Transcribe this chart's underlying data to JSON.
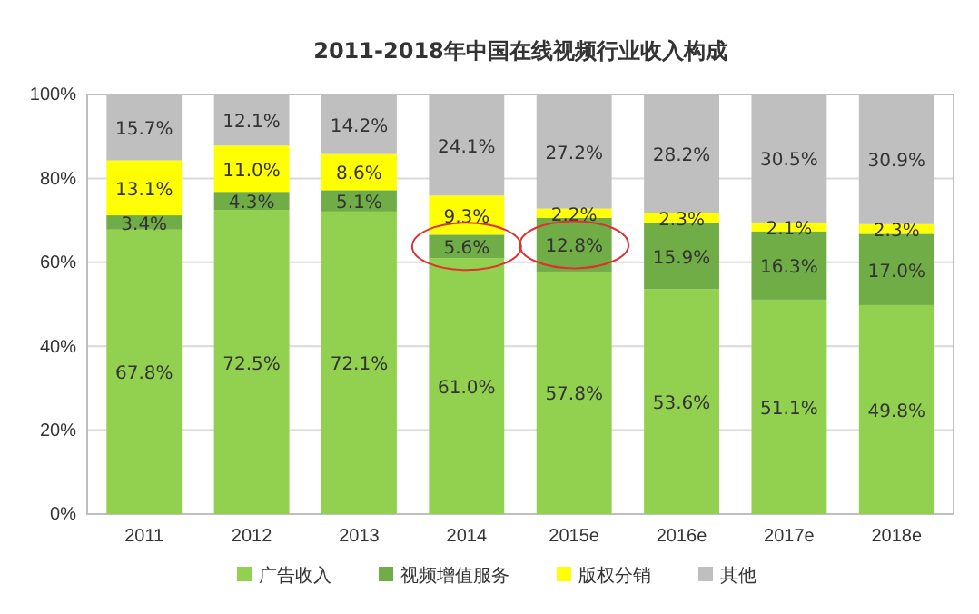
{
  "chart_data": {
    "type": "bar",
    "stacked": true,
    "title": "2011-2018年中国在线视频行业收入构成",
    "categories": [
      "2011",
      "2012",
      "2013",
      "2014",
      "2015e",
      "2016e",
      "2017e",
      "2018e"
    ],
    "series": [
      {
        "name": "广告收入",
        "color": "#92d050",
        "values": [
          67.8,
          72.5,
          72.1,
          61.0,
          57.8,
          53.6,
          51.1,
          49.8
        ],
        "value_labels": [
          "67.8%",
          "72.5%",
          "72.1%",
          "61.0%",
          "57.8%",
          "53.6%",
          "51.1%",
          "49.8%"
        ]
      },
      {
        "name": "视频增值服务",
        "color": "#70ad47",
        "values": [
          3.4,
          4.3,
          5.1,
          5.6,
          12.8,
          15.9,
          16.3,
          17.0
        ],
        "value_labels": [
          "3.4%",
          "4.3%",
          "5.1%",
          "5.6%",
          "12.8%",
          "15.9%",
          "16.3%",
          "17.0%"
        ]
      },
      {
        "name": "版权分销",
        "color": "#ffff00",
        "values": [
          13.1,
          11.0,
          8.6,
          9.3,
          2.2,
          2.3,
          2.1,
          2.3
        ],
        "value_labels": [
          "13.1%",
          "11.0%",
          "8.6%",
          "9.3%",
          "2.2%",
          "2.3%",
          "2.1%",
          "2.3%"
        ]
      },
      {
        "name": "其他",
        "color": "#bfbfbf",
        "values": [
          15.7,
          12.1,
          14.2,
          24.1,
          27.2,
          28.2,
          30.5,
          30.9
        ],
        "value_labels": [
          "15.7%",
          "12.1%",
          "14.2%",
          "24.1%",
          "27.2%",
          "28.2%",
          "30.5%",
          "30.9%"
        ]
      }
    ],
    "ylim": [
      0,
      100
    ],
    "yticks": [
      {
        "value": 0,
        "label": "0%"
      },
      {
        "value": 20,
        "label": "20%"
      },
      {
        "value": 40,
        "label": "40%"
      },
      {
        "value": 60,
        "label": "60%"
      },
      {
        "value": 80,
        "label": "80%"
      },
      {
        "value": 100,
        "label": "100%"
      }
    ],
    "grid": "y",
    "legend": "bottom"
  }
}
